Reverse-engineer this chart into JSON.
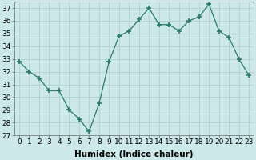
{
  "x": [
    0,
    1,
    2,
    3,
    4,
    5,
    6,
    7,
    8,
    9,
    10,
    11,
    12,
    13,
    14,
    15,
    16,
    17,
    18,
    19,
    20,
    21,
    22,
    23
  ],
  "y": [
    32.8,
    32.0,
    31.5,
    30.5,
    30.5,
    29.0,
    28.3,
    27.3,
    29.5,
    32.8,
    34.8,
    35.2,
    36.1,
    37.0,
    35.7,
    35.7,
    35.2,
    36.0,
    36.3,
    37.3,
    35.2,
    34.7,
    33.0,
    31.7
  ],
  "line_color": "#2a7a68",
  "marker": "+",
  "marker_size": 4,
  "bg_color": "#cce8e8",
  "grid_color": "#b0d0d0",
  "xlabel": "Humidex (Indice chaleur)",
  "ylim": [
    27,
    37.5
  ],
  "yticks": [
    27,
    28,
    29,
    30,
    31,
    32,
    33,
    34,
    35,
    36,
    37
  ],
  "xticks": [
    0,
    1,
    2,
    3,
    4,
    5,
    6,
    7,
    8,
    9,
    10,
    11,
    12,
    13,
    14,
    15,
    16,
    17,
    18,
    19,
    20,
    21,
    22,
    23
  ],
  "xlabel_fontsize": 7.5,
  "tick_fontsize": 6.5
}
